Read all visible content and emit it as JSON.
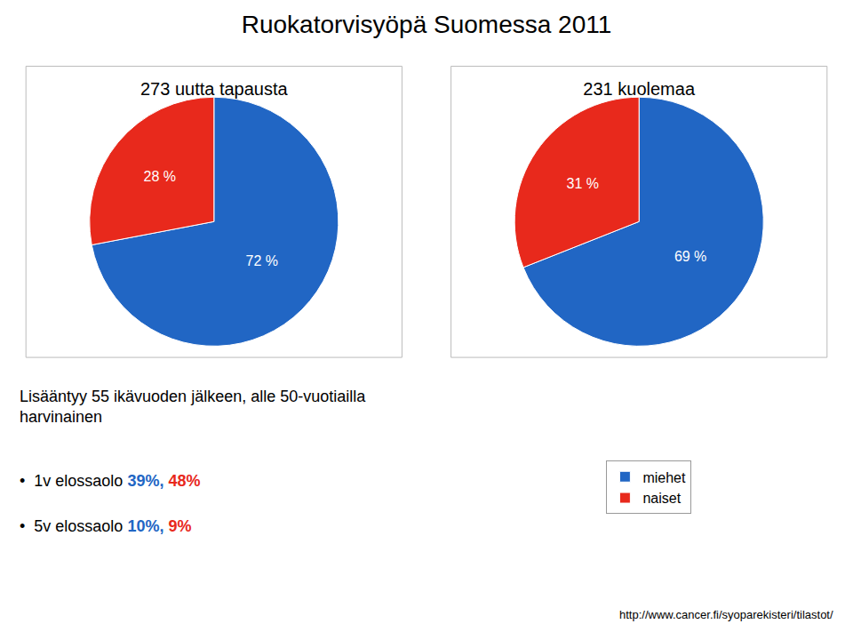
{
  "title": "Ruokatorvisyöpä Suomessa 2011",
  "subtitle": [
    "Lisääntyy 55 ikävuoden jälkeen, alle 50-vuotiailla",
    "harvinainen"
  ],
  "chart_data": [
    {
      "type": "pie",
      "title": "273 uutta tapausta",
      "categories": [
        "miehet",
        "naiset"
      ],
      "values": [
        72,
        28
      ],
      "value_labels": [
        "72 %",
        "28 %"
      ],
      "colors": [
        "#2166c4",
        "#e8291c"
      ],
      "data_labels": true,
      "legend": "lower right"
    },
    {
      "type": "pie",
      "title": "231 kuolemaa",
      "categories": [
        "miehet",
        "naiset"
      ],
      "values": [
        69,
        31
      ],
      "value_labels": [
        "69 %",
        "31 %"
      ],
      "colors": [
        "#2166c4",
        "#e8291c"
      ],
      "data_labels": true
    }
  ],
  "annotations": [
    {
      "text": "•  1v elossaolo",
      "values": [
        39,
        48
      ],
      "value_labels": [
        "39%,",
        "48%"
      ],
      "colors": [
        "#2166c4",
        "#e8291c"
      ]
    },
    {
      "text": "•  5v elossaolo",
      "values": [
        10,
        9
      ],
      "value_labels": [
        "10%,",
        "9%"
      ],
      "colors": [
        "#2166c4",
        "#e8291c"
      ]
    },
    {
      "text": "http://www.cancer.fi/syoparekisteri/tilastot/"
    }
  ]
}
